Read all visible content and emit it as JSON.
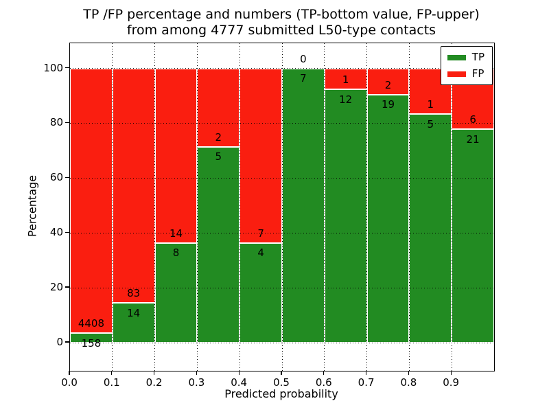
{
  "title": {
    "line1": "TP /FP percentage and numbers (TP-bottom value, FP-upper)",
    "line2": "from among 4777 submitted L50-type contacts"
  },
  "axes": {
    "xlabel": "Predicted probability",
    "ylabel": "Percentage",
    "xtick_labels": [
      "0.0",
      "0.1",
      "0.2",
      "0.3",
      "0.4",
      "0.5",
      "0.6",
      "0.7",
      "0.8",
      "0.9"
    ],
    "ytick_labels": [
      "0",
      "20",
      "40",
      "60",
      "80",
      "100"
    ],
    "ytick_values": [
      0,
      20,
      40,
      60,
      80,
      100
    ]
  },
  "legend": {
    "items": [
      {
        "label": "TP",
        "color": "#228B22"
      },
      {
        "label": "FP",
        "color": "#FA1E10"
      }
    ]
  },
  "chart_data": {
    "type": "bar",
    "stacked": true,
    "normalized_to_percent": true,
    "title": "TP /FP percentage and numbers (TP-bottom value, FP-upper) from among 4777 submitted L50-type contacts",
    "xlabel": "Predicted probability",
    "ylabel": "Percentage",
    "total_submitted": 4777,
    "bin_edges": [
      0.0,
      0.1,
      0.2,
      0.3,
      0.4,
      0.5,
      0.6,
      0.7,
      0.8,
      0.9,
      1.0
    ],
    "categories": [
      "0.0-0.1",
      "0.1-0.2",
      "0.2-0.3",
      "0.3-0.4",
      "0.4-0.5",
      "0.5-0.6",
      "0.6-0.7",
      "0.7-0.8",
      "0.8-0.9",
      "0.9-1.0"
    ],
    "series": [
      {
        "name": "TP",
        "color": "#228B22",
        "counts": [
          158,
          14,
          8,
          5,
          4,
          7,
          12,
          19,
          5,
          21
        ]
      },
      {
        "name": "FP",
        "color": "#FA1E10",
        "counts": [
          4408,
          83,
          14,
          2,
          7,
          0,
          1,
          2,
          1,
          6
        ]
      }
    ],
    "tp_percent": [
      3.46,
      14.43,
      36.36,
      71.43,
      36.36,
      100.0,
      92.31,
      90.48,
      83.33,
      77.78
    ],
    "ylim": [
      -10.3,
      109.2
    ],
    "xlim": [
      0.0,
      1.0
    ],
    "grid": "dotted",
    "legend_position": "upper right"
  }
}
